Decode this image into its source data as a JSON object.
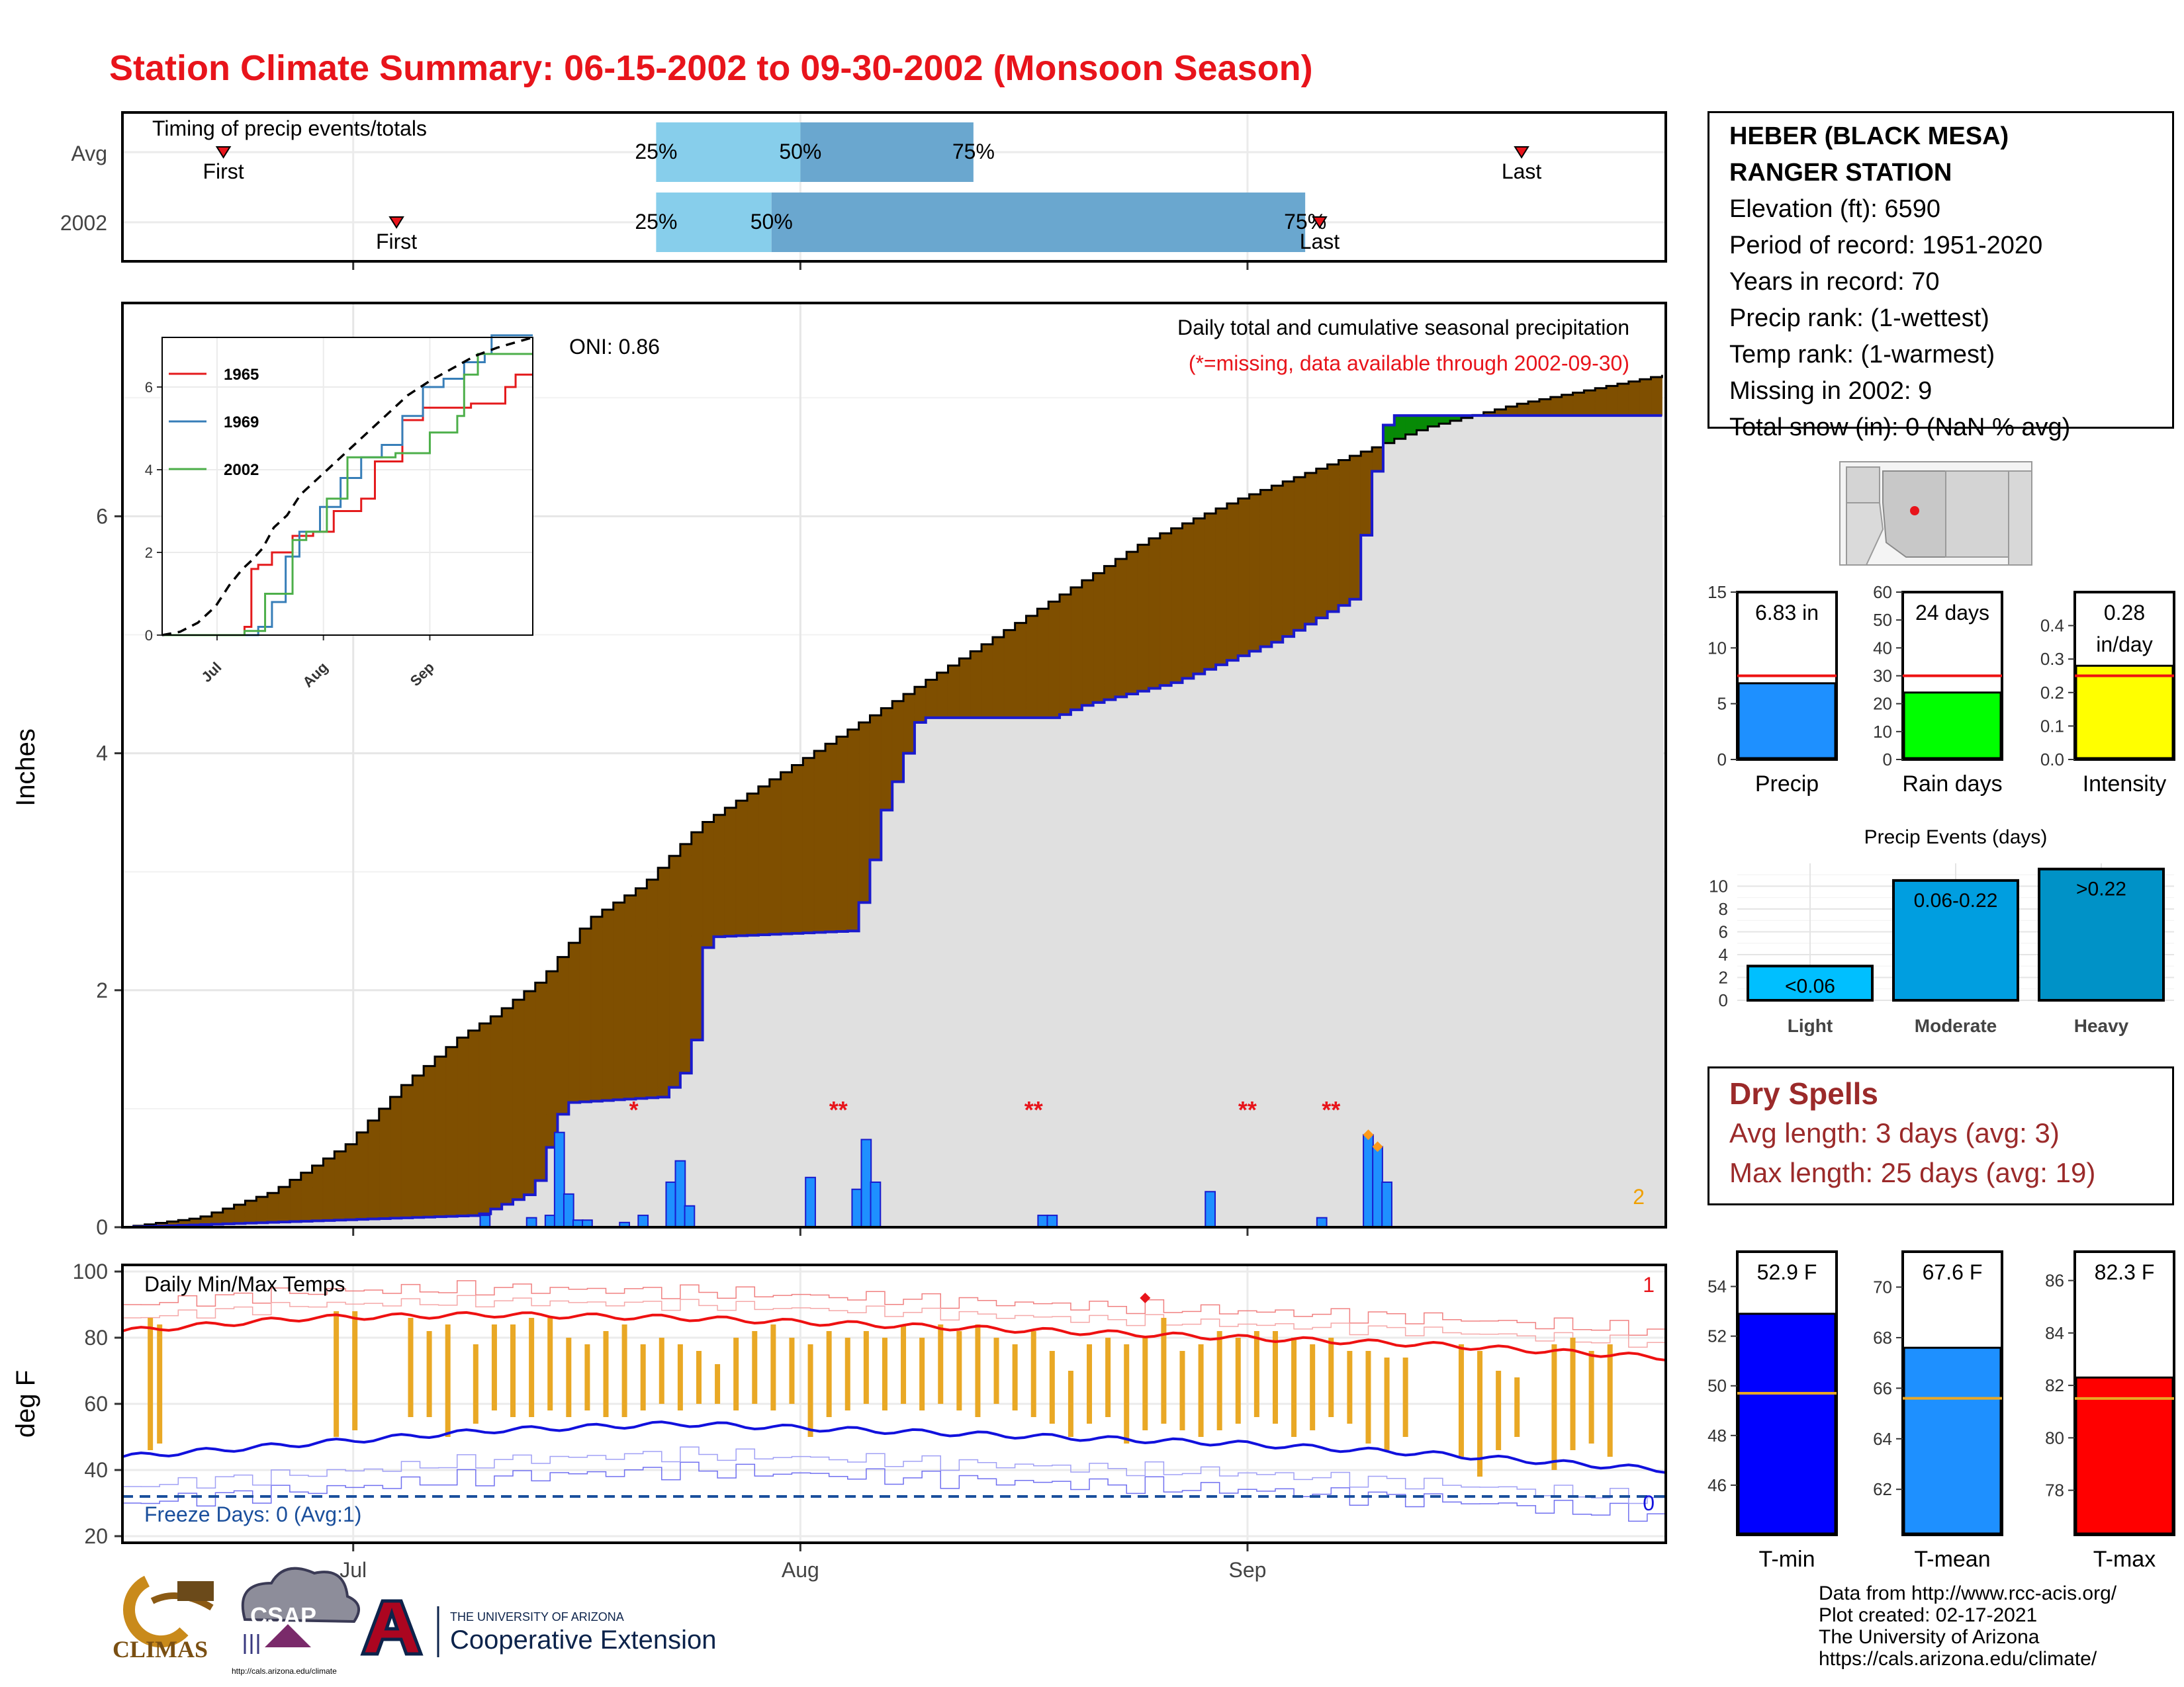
{
  "title": "Station Climate Summary: 06-15-2002 to 09-30-2002 (Monsoon Season)",
  "colors": {
    "title": "#e8141b",
    "brown": "#7f4f00",
    "green": "#078a06",
    "bar_blue": "#1e90ff",
    "outline_blue": "#1a1acd",
    "light_blue": "#87ceeb",
    "mid_blue": "#6aa7cf",
    "orange": "#e9a825",
    "tmax_red": "#ee1111",
    "tmin_blue": "#1111dd"
  },
  "station": {
    "name_line1": "HEBER (BLACK MESA)",
    "name_line2": "RANGER STATION",
    "elevation": "Elevation (ft): 6590",
    "period": "Period of record: 1951-2020",
    "years": "Years in record: 70",
    "precip_rank": "Precip rank:  (1-wettest)",
    "temp_rank": "Temp rank:  (1-warmest)",
    "missing": "Missing in 2002: 9",
    "snow": "Total snow (in): 0 (NaN % avg)"
  },
  "dry_spells": {
    "title": "Dry Spells",
    "avg": "Avg length: 3 days (avg: 3)",
    "max": "Max length: 25 days (avg: 19)"
  },
  "credits": {
    "line1": "Data from http://www.rcc-acis.org/",
    "line2": "Plot created: 02-17-2021",
    "line3": "The University of Arizona",
    "line4": "https://cals.arizona.edu/climate/"
  },
  "logos": {
    "climas": "CLIMAS",
    "csap": "CSAP",
    "csap_url": "http://cals.arizona.edu/climate",
    "ua_small": "THE UNIVERSITY OF ARIZONA",
    "ua_big": "Cooperative Extension"
  },
  "chart_data": [
    {
      "id": "timing",
      "type": "bar",
      "title": "Timing of precip events/totals",
      "rows": [
        {
          "label": "Avg",
          "first": "Jun 22",
          "q25": "Jul 22",
          "q50": "Aug 1",
          "q75": "Aug 13",
          "last": "Sep 20"
        },
        {
          "label": "2002",
          "first": "Jul 4",
          "q25": "Jul 22",
          "q50": "Jul 30",
          "q75": "Sep 5",
          "last": "Sep 6"
        }
      ],
      "labels": {
        "first": "First",
        "last": "Last",
        "q25": "25%",
        "q50": "50%",
        "q75": "75%"
      }
    },
    {
      "id": "precip",
      "type": "area",
      "title": "Daily total and cumulative seasonal precipitation",
      "subtitle": "(*=missing, data available through 2002-09-30)",
      "oni": "ONI: 0.86",
      "ylabel": "Inches",
      "ylim": [
        0,
        7.8
      ],
      "yticks": [
        0,
        2,
        4,
        6
      ],
      "xticks": [
        "Jul",
        "Aug",
        "Sep"
      ],
      "corner_count": "2",
      "avg_cumulative": [
        [
          0,
          0
        ],
        [
          8,
          0.08
        ],
        [
          16,
          0.3
        ],
        [
          24,
          0.7
        ],
        [
          30,
          1.2
        ],
        [
          36,
          1.6
        ],
        [
          40,
          1.8
        ],
        [
          45,
          2.1
        ],
        [
          50,
          2.6
        ],
        [
          56,
          2.9
        ],
        [
          62,
          3.4
        ],
        [
          70,
          3.8
        ],
        [
          80,
          4.3
        ],
        [
          90,
          4.8
        ],
        [
          100,
          5.3
        ],
        [
          110,
          5.8
        ],
        [
          120,
          6.15
        ],
        [
          130,
          6.45
        ],
        [
          140,
          6.75
        ],
        [
          150,
          6.95
        ],
        [
          166,
          7.2
        ]
      ],
      "cum_2002": [
        [
          0,
          0
        ],
        [
          38,
          0.1
        ],
        [
          44,
          0.3
        ],
        [
          47,
          1.0
        ],
        [
          47.5,
          1.05
        ],
        [
          58,
          1.1
        ],
        [
          61,
          1.4
        ],
        [
          62,
          2.3
        ],
        [
          63,
          2.45
        ],
        [
          78,
          2.5
        ],
        [
          80,
          2.9
        ],
        [
          81,
          3.4
        ],
        [
          82,
          3.6
        ],
        [
          84,
          4.0
        ],
        [
          85,
          4.25
        ],
        [
          86,
          4.3
        ],
        [
          100,
          4.3
        ],
        [
          103,
          4.4
        ],
        [
          113,
          4.6
        ],
        [
          124,
          4.95
        ],
        [
          132,
          5.3
        ],
        [
          134,
          6.2
        ],
        [
          135,
          6.65
        ],
        [
          136,
          6.85
        ],
        [
          166,
          6.85
        ]
      ],
      "daily_bars": [
        [
          39,
          0.1
        ],
        [
          44,
          0.08
        ],
        [
          46,
          0.1
        ],
        [
          47,
          0.8
        ],
        [
          48,
          0.28
        ],
        [
          49,
          0.06
        ],
        [
          50,
          0.06
        ],
        [
          54,
          0.04
        ],
        [
          56,
          0.1
        ],
        [
          59,
          0.38
        ],
        [
          60,
          0.56
        ],
        [
          61,
          0.18
        ],
        [
          74,
          0.42
        ],
        [
          79,
          0.32
        ],
        [
          80,
          0.74
        ],
        [
          81,
          0.38
        ],
        [
          99,
          0.1
        ],
        [
          100,
          0.1
        ],
        [
          117,
          0.3
        ],
        [
          129,
          0.08
        ],
        [
          134,
          0.78
        ],
        [
          135,
          0.68
        ],
        [
          136,
          0.38
        ]
      ],
      "missing_marks": [
        [
          55,
          "*"
        ],
        [
          77,
          "**"
        ],
        [
          98,
          "**"
        ],
        [
          121,
          "**"
        ],
        [
          130,
          "**"
        ]
      ],
      "inset": {
        "type": "line",
        "xticks": [
          "Jul",
          "Aug",
          "Sep"
        ],
        "yticks": [
          0,
          2,
          4,
          6
        ],
        "ylim": [
          0,
          7.2
        ],
        "series": [
          {
            "name": "1965",
            "color": "#e41a1c",
            "values": [
              [
                0,
                0
              ],
              [
                24,
                0.2
              ],
              [
                26,
                1.6
              ],
              [
                28,
                1.7
              ],
              [
                32,
                2.0
              ],
              [
                38,
                2.4
              ],
              [
                44,
                2.5
              ],
              [
                50,
                3.0
              ],
              [
                58,
                3.3
              ],
              [
                62,
                4.2
              ],
              [
                70,
                5.2
              ],
              [
                76,
                5.5
              ],
              [
                90,
                5.6
              ],
              [
                100,
                6.0
              ],
              [
                103,
                6.3
              ],
              [
                108,
                6.3
              ]
            ]
          },
          {
            "name": "1969",
            "color": "#377eb8",
            "values": [
              [
                0,
                0
              ],
              [
                28,
                0.2
              ],
              [
                32,
                0.8
              ],
              [
                36,
                1.9
              ],
              [
                40,
                2.5
              ],
              [
                46,
                3.1
              ],
              [
                52,
                3.8
              ],
              [
                58,
                4.3
              ],
              [
                64,
                4.6
              ],
              [
                70,
                5.3
              ],
              [
                76,
                6.0
              ],
              [
                82,
                6.2
              ],
              [
                88,
                6.6
              ],
              [
                94,
                6.8
              ],
              [
                96,
                7.3
              ],
              [
                108,
                7.3
              ]
            ]
          },
          {
            "name": "2002",
            "color": "#4daf4a",
            "values": [
              [
                0,
                0
              ],
              [
                24,
                0.1
              ],
              [
                30,
                1.0
              ],
              [
                38,
                2.3
              ],
              [
                42,
                2.5
              ],
              [
                48,
                3.3
              ],
              [
                54,
                4.3
              ],
              [
                68,
                4.4
              ],
              [
                78,
                4.9
              ],
              [
                86,
                5.3
              ],
              [
                88,
                6.3
              ],
              [
                92,
                6.8
              ],
              [
                108,
                6.8
              ]
            ]
          }
        ]
      }
    },
    {
      "id": "temps",
      "type": "line",
      "title": "Daily Min/Max Temps",
      "ylabel": "deg F",
      "ylim": [
        18,
        102
      ],
      "yticks": [
        20,
        40,
        60,
        80,
        100
      ],
      "xticks": [
        "Jul",
        "Aug",
        "Sep"
      ],
      "freeze_line": 32,
      "freeze_label": "Freeze Days: 0 (Avg:1)",
      "count_top": "1",
      "count_bottom": "0",
      "avg_max": [
        [
          0,
          82
        ],
        [
          20,
          86
        ],
        [
          40,
          87
        ],
        [
          60,
          86
        ],
        [
          80,
          84
        ],
        [
          100,
          82
        ],
        [
          120,
          80
        ],
        [
          140,
          78
        ],
        [
          166,
          74
        ]
      ],
      "avg_min": [
        [
          0,
          44
        ],
        [
          20,
          48
        ],
        [
          40,
          52
        ],
        [
          60,
          54
        ],
        [
          80,
          52
        ],
        [
          100,
          50
        ],
        [
          120,
          48
        ],
        [
          140,
          45
        ],
        [
          166,
          40
        ]
      ],
      "daily_range": [
        [
          3,
          46,
          86
        ],
        [
          4,
          48,
          84
        ],
        [
          23,
          50,
          88
        ],
        [
          25,
          52,
          88
        ],
        [
          31,
          56,
          86
        ],
        [
          33,
          56,
          82
        ],
        [
          35,
          50,
          84
        ],
        [
          38,
          54,
          78
        ],
        [
          40,
          58,
          84
        ],
        [
          42,
          56,
          84
        ],
        [
          44,
          56,
          86
        ],
        [
          46,
          58,
          86
        ],
        [
          48,
          56,
          80
        ],
        [
          50,
          58,
          78
        ],
        [
          52,
          56,
          82
        ],
        [
          54,
          56,
          84
        ],
        [
          56,
          58,
          78
        ],
        [
          58,
          60,
          80
        ],
        [
          60,
          58,
          78
        ],
        [
          62,
          60,
          76
        ],
        [
          64,
          60,
          72
        ],
        [
          66,
          58,
          80
        ],
        [
          68,
          60,
          82
        ],
        [
          70,
          58,
          84
        ],
        [
          72,
          60,
          80
        ],
        [
          74,
          50,
          78
        ],
        [
          76,
          56,
          82
        ],
        [
          78,
          58,
          80
        ],
        [
          80,
          60,
          82
        ],
        [
          82,
          58,
          80
        ],
        [
          84,
          60,
          84
        ],
        [
          86,
          58,
          80
        ],
        [
          88,
          60,
          84
        ],
        [
          90,
          58,
          82
        ],
        [
          92,
          56,
          84
        ],
        [
          94,
          60,
          80
        ],
        [
          96,
          58,
          78
        ],
        [
          98,
          56,
          82
        ],
        [
          100,
          54,
          76
        ],
        [
          102,
          50,
          70
        ],
        [
          104,
          54,
          78
        ],
        [
          106,
          56,
          80
        ],
        [
          108,
          48,
          78
        ],
        [
          110,
          52,
          80
        ],
        [
          112,
          54,
          86
        ],
        [
          114,
          52,
          76
        ],
        [
          116,
          50,
          78
        ],
        [
          118,
          52,
          82
        ],
        [
          120,
          54,
          80
        ],
        [
          122,
          56,
          82
        ],
        [
          124,
          54,
          82
        ],
        [
          126,
          50,
          80
        ],
        [
          128,
          52,
          78
        ],
        [
          130,
          56,
          80
        ],
        [
          132,
          54,
          76
        ],
        [
          134,
          48,
          76
        ],
        [
          136,
          46,
          74
        ],
        [
          138,
          50,
          74
        ],
        [
          144,
          44,
          78
        ],
        [
          146,
          38,
          76
        ],
        [
          148,
          46,
          70
        ],
        [
          150,
          50,
          68
        ],
        [
          154,
          40,
          78
        ],
        [
          156,
          46,
          80
        ],
        [
          158,
          48,
          76
        ],
        [
          160,
          44,
          78
        ]
      ],
      "max_record_mark": [
        110,
        92
      ]
    },
    {
      "id": "precip_total",
      "type": "bar",
      "categories": [
        "Precip"
      ],
      "values": [
        6.83
      ],
      "avg": 7.5,
      "ylim": [
        0,
        15
      ],
      "yticks": [
        0,
        5,
        10,
        15
      ],
      "value_label": "6.83 in"
    },
    {
      "id": "rain_days",
      "type": "bar",
      "categories": [
        "Rain days"
      ],
      "values": [
        24
      ],
      "avg": 30,
      "ylim": [
        0,
        60
      ],
      "yticks": [
        0,
        10,
        20,
        30,
        40,
        50,
        60
      ],
      "value_label": "24 days"
    },
    {
      "id": "intensity",
      "type": "bar",
      "categories": [
        "Intensity"
      ],
      "values": [
        0.28
      ],
      "avg": 0.25,
      "ylim": [
        0,
        0.5
      ],
      "yticks": [
        0.0,
        0.1,
        0.2,
        0.3,
        0.4
      ],
      "value_label_1": "0.28",
      "value_label_2": "in/day"
    },
    {
      "id": "events",
      "type": "bar",
      "title": "Precip Events (days)",
      "categories": [
        "Light",
        "Moderate",
        "Heavy"
      ],
      "values": [
        3,
        10.5,
        11.5
      ],
      "bar_labels": [
        "<0.06",
        "0.06-0.22",
        ">0.22"
      ],
      "colors": [
        "#00bfff",
        "#009ee0",
        "#0092c7"
      ],
      "ylim": [
        0,
        12
      ],
      "yticks": [
        0,
        2,
        4,
        6,
        8,
        10
      ]
    },
    {
      "id": "tmin",
      "type": "bar",
      "categories": [
        "T-min"
      ],
      "values": [
        52.9
      ],
      "avg": 49.7,
      "ylim": [
        44,
        55.4
      ],
      "yticks": [
        46,
        48,
        50,
        52,
        54
      ],
      "value_label": "52.9 F",
      "color": "#0000ff"
    },
    {
      "id": "tmean",
      "type": "bar",
      "categories": [
        "T-mean"
      ],
      "values": [
        67.6
      ],
      "avg": 65.6,
      "ylim": [
        60.2,
        71.4
      ],
      "yticks": [
        62,
        64,
        66,
        68,
        70
      ],
      "value_label": "67.6 F",
      "color": "#1e90ff"
    },
    {
      "id": "tmax",
      "type": "bar",
      "categories": [
        "T-max"
      ],
      "values": [
        82.3
      ],
      "avg": 81.5,
      "ylim": [
        76.3,
        87.1
      ],
      "yticks": [
        78,
        80,
        82,
        84,
        86
      ],
      "value_label": "82.3 F",
      "color": "#ff0000"
    }
  ]
}
